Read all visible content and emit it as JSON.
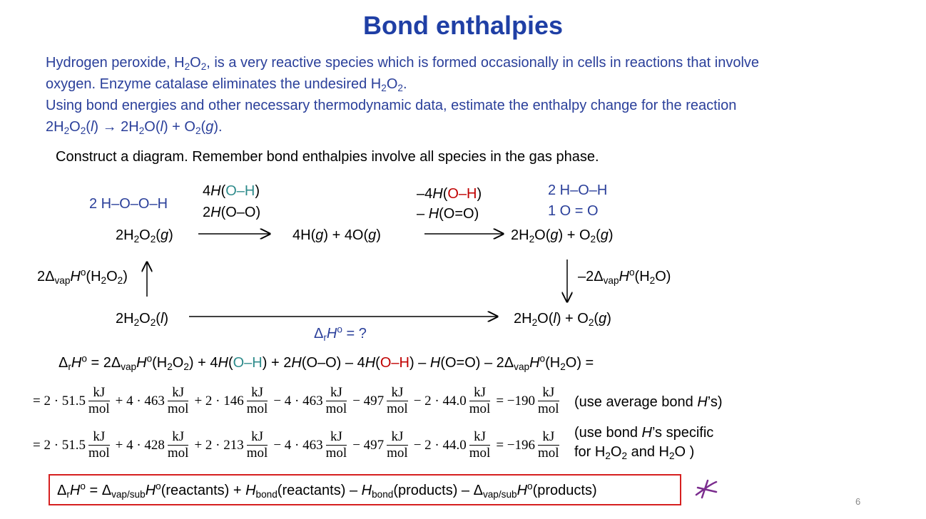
{
  "title": "Bond enthalpies",
  "intro": [
    [
      "Hydrogen peroxide, H",
      "2",
      "O",
      "2",
      ", is a very reactive species which is formed occasionally in cells in reactions that involve"
    ],
    [
      "oxygen. Enzyme catalase eliminates the undesired H",
      "2",
      "O",
      "2",
      "."
    ],
    [
      "Using bond energies and other necessary thermodynamic data, estimate the enthalpy change for the reaction"
    ],
    [
      "2H",
      "2",
      "O",
      "2",
      "(",
      "l",
      ") → 2H",
      "2",
      "O(",
      "l",
      ") + O",
      "2",
      "(",
      "g",
      ")."
    ]
  ],
  "instruction": "Construct a diagram. Remember bond enthalpies involve all species in the gas phase.",
  "diagram": {
    "reactant_structure": "2 H–O–O–H",
    "break_bonds": [
      [
        "4",
        "H",
        "(",
        "O–H",
        ")"
      ],
      [
        "2",
        "H",
        "(O–O)"
      ]
    ],
    "gas_reactant": [
      "2H",
      "2",
      "O",
      "2",
      "(",
      "g",
      ")"
    ],
    "atoms": [
      "4H(",
      "g",
      ") + 4O(",
      "g",
      ")"
    ],
    "form_bonds": [
      [
        "–4",
        "H",
        "(",
        "O–H",
        ")"
      ],
      [
        "– ",
        "H",
        "(O=O)"
      ]
    ],
    "product_structure": [
      "2 H–O–H",
      "1 O = O"
    ],
    "gas_products": [
      "2H",
      "2",
      "O(",
      "g",
      ") + O",
      "2",
      "(",
      "g",
      ")"
    ],
    "vap_reactant": [
      "2Δ",
      "vap",
      "H",
      "o",
      "(H",
      "2",
      "O",
      "2",
      ")"
    ],
    "vap_products": [
      "–2Δ",
      "vap",
      "H",
      "o",
      "(H",
      "2",
      "O)"
    ],
    "liquid_reactant": [
      "2H",
      "2",
      "O",
      "2",
      "(",
      "l",
      ")"
    ],
    "liquid_products": [
      "2H",
      "2",
      "O(",
      "l",
      ") + O",
      "2",
      "(",
      "g",
      ")"
    ],
    "reaction_enthalpy": [
      "Δ",
      "r",
      "H",
      "o",
      " = ?"
    ]
  },
  "equation": [
    "Δ",
    "r",
    "H",
    "o",
    " = 2Δ",
    "vap",
    "H",
    "o",
    "(H",
    "2",
    "O",
    "2",
    ") + 4",
    "H",
    "(",
    "O–H",
    ") + 2",
    "H",
    "(O–O) – 4",
    "H",
    "(",
    "O–H",
    ") – ",
    "H",
    "(O=O) – 2Δ",
    "vap",
    "H",
    "o",
    "(H",
    "2",
    "O) ="
  ],
  "unit": {
    "numerator": "kJ",
    "denominator": "mol"
  },
  "calculations": [
    {
      "terms": [
        "= 2 · 51.5",
        "+ 4 · 463",
        "+ 2 · 146",
        "− 4 · 463",
        "− 497",
        "− 2 · 44.0",
        "= −190"
      ],
      "note": [
        [
          "(use average bond ",
          "H",
          "’s)"
        ]
      ]
    },
    {
      "terms": [
        "= 2 · 51.5",
        "+ 4 · 428",
        "+ 2 · 213",
        "− 4 · 463",
        "− 497",
        "− 2 · 44.0",
        "= −196"
      ],
      "note": [
        [
          "(use bond ",
          "H",
          "’s specific"
        ],
        [
          "for H",
          "2",
          "O",
          "2",
          " and H",
          "2",
          "O )"
        ]
      ]
    }
  ],
  "summary": [
    "Δ",
    "r",
    "H",
    "o",
    " = Δ",
    "vap/sub",
    "H",
    "o",
    "(reactants) + ",
    "H",
    "bond",
    "(reactants) – ",
    "H",
    "bond",
    "(products) – Δ",
    "vap/sub",
    "H",
    "o",
    "(products)"
  ],
  "page_number": "6"
}
